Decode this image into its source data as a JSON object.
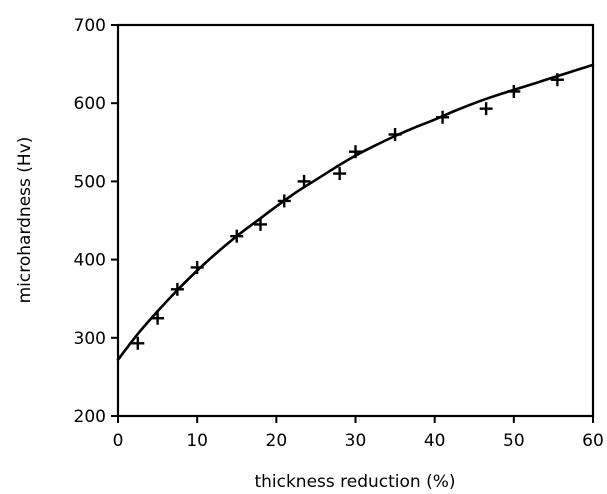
{
  "chart_data": {
    "type": "scatter",
    "xlabel": "thickness reduction (%)",
    "ylabel": "microhardness (Hv)",
    "xlim": [
      0,
      60
    ],
    "ylim": [
      200,
      700
    ],
    "xticks": [
      0,
      10,
      20,
      30,
      40,
      50,
      60
    ],
    "yticks": [
      200,
      300,
      400,
      500,
      600,
      700
    ],
    "xtick_labels": [
      "0",
      "10",
      "20",
      "30",
      "40",
      "50",
      "60"
    ],
    "ytick_labels": [
      "200",
      "300",
      "400",
      "500",
      "600",
      "700"
    ],
    "grid": false,
    "legend": "none",
    "series": [
      {
        "kind": "points",
        "marker": "plus",
        "x": [
          2.5,
          5,
          7.5,
          10,
          15,
          18,
          21,
          23.5,
          28,
          30,
          35,
          41,
          46.5,
          50,
          55.5
        ],
        "y": [
          293,
          325,
          362,
          390,
          430,
          445,
          475,
          500,
          510,
          538,
          560,
          582,
          593,
          615,
          630
        ]
      },
      {
        "kind": "fit",
        "x": [
          0,
          2.5,
          5,
          7.5,
          10,
          12.5,
          15,
          17.5,
          20,
          22.5,
          25,
          27.5,
          30,
          32.5,
          35,
          37.5,
          40,
          42.5,
          45,
          47.5,
          50,
          52.5,
          55,
          57.5,
          60
        ],
        "y": [
          272,
          305,
          334,
          361,
          386,
          409,
          430,
          449,
          468,
          486,
          502,
          518,
          533,
          546,
          558,
          569,
          579,
          590,
          600,
          609,
          617,
          625,
          633,
          641,
          649
        ]
      }
    ]
  }
}
